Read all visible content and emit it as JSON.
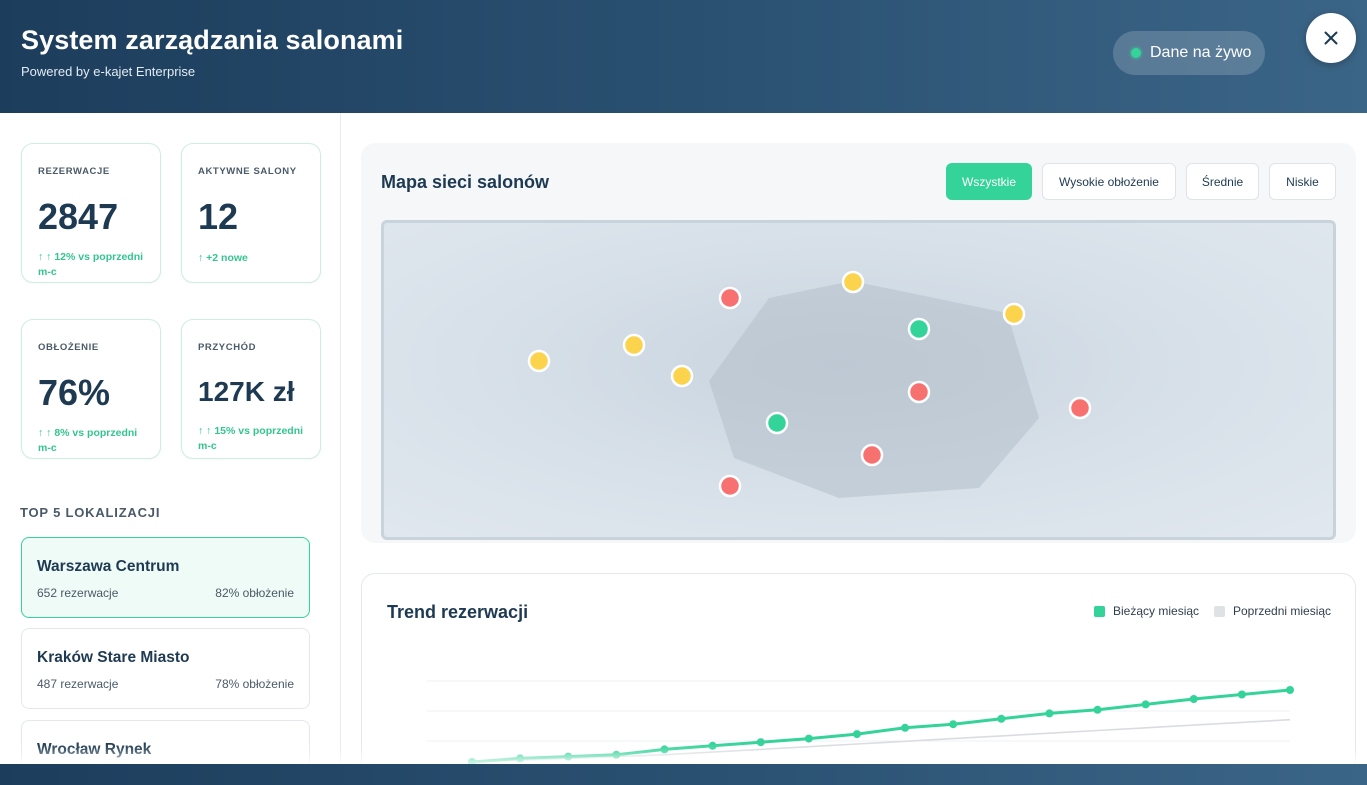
{
  "header": {
    "title": "System zarządzania salonami",
    "subtitle": "Powered by e-kajet Enterprise",
    "live_label": "Dane na żywo",
    "close_icon": "close-icon"
  },
  "stats": [
    {
      "label": "REZERWACJE",
      "value": "2847",
      "trend": "↑ ↑ 12% vs poprzedni m-c"
    },
    {
      "label": "AKTYWNE SALONY",
      "value": "12",
      "trend": "↑ +2 nowe"
    },
    {
      "label": "OBŁOŻENIE",
      "value": "76%",
      "trend": "↑ ↑ 8% vs poprzedni m-c"
    },
    {
      "label": "PRZYCHÓD",
      "value": "127K zł",
      "trend": "↑ ↑ 15% vs poprzedni m-c"
    }
  ],
  "top_locations": {
    "title": "TOP 5 LOKALIZACJI",
    "items": [
      {
        "name": "Warszawa Centrum",
        "reservations": "652 rezerwacje",
        "occupancy": "82% obłożenie"
      },
      {
        "name": "Kraków Stare Miasto",
        "reservations": "487 rezerwacje",
        "occupancy": "78% obłożenie"
      },
      {
        "name": "Wrocław Rynek",
        "reservations": "",
        "occupancy": ""
      }
    ]
  },
  "map": {
    "title": "Mapa sieci salonów",
    "filters": [
      "Wszystkie",
      "Wysokie obłożenie",
      "Średnie",
      "Niskie"
    ],
    "active_filter": "Wszystkie",
    "colors": {
      "high": "#34d399",
      "medium": "#fcd34d",
      "low": "#f87171"
    },
    "markers": [
      {
        "status": "medium"
      },
      {
        "status": "low"
      },
      {
        "status": "medium"
      },
      {
        "status": "high"
      },
      {
        "status": "medium"
      },
      {
        "status": "medium"
      },
      {
        "status": "medium"
      },
      {
        "status": "low"
      },
      {
        "status": "low"
      },
      {
        "status": "high"
      },
      {
        "status": "low"
      },
      {
        "status": "low"
      }
    ]
  },
  "trend": {
    "title": "Trend rezerwacji",
    "legend": {
      "current": "Bieżący miesiąc",
      "previous": "Poprzedni miesiąc"
    },
    "colors": {
      "current": "#34d399",
      "previous": "#d9dde0"
    }
  },
  "chart_data": {
    "type": "line",
    "series": [
      {
        "name": "Bieżący miesiąc",
        "values": [
          0,
          4,
          6,
          8,
          14,
          18,
          22,
          26,
          31,
          38,
          42,
          48,
          54,
          58,
          64,
          70,
          75,
          80
        ]
      },
      {
        "name": "Poprzedni miesiąc",
        "values": [
          0,
          2,
          4,
          6,
          8,
          11,
          14,
          17,
          20,
          23,
          26,
          29,
          32,
          35,
          38,
          41,
          44,
          47
        ]
      }
    ],
    "ylim": [
      -10,
      90
    ],
    "grid": true
  }
}
